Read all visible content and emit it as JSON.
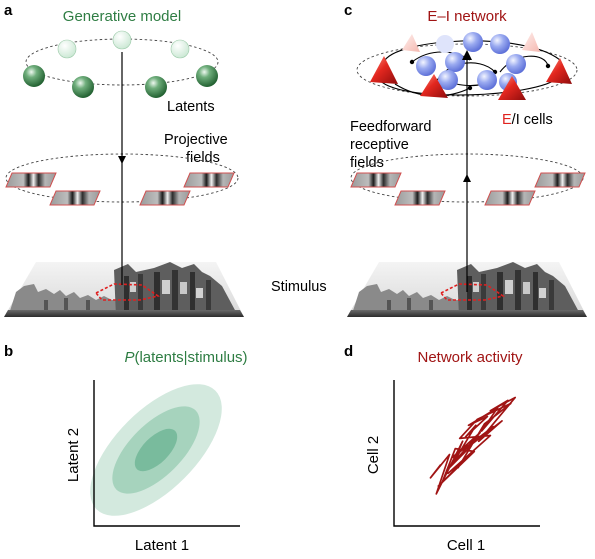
{
  "panels": {
    "a": {
      "letter": "a",
      "title": "Generative model",
      "latents_label": "Latents",
      "projective_label_1": "Projective",
      "projective_label_2": "fields",
      "stimulus_label": "Stimulus"
    },
    "b": {
      "letter": "b",
      "title_italic": "P",
      "title_rest": "(latents|stimulus)",
      "xlabel": "Latent 1",
      "ylabel": "Latent 2"
    },
    "c": {
      "letter": "c",
      "title": "E–I network",
      "ff_label_1": "Feedforward",
      "ff_label_2": "receptive",
      "ff_label_3": "fields",
      "ei_e": "E",
      "ei_rest": "/I cells"
    },
    "d": {
      "letter": "d",
      "title": "Network activity",
      "xlabel": "Cell 1",
      "ylabel": "Cell 2"
    }
  },
  "colors": {
    "green_title": "#2e7d43",
    "latent_green": "#2f7a3e",
    "latent_faded": "#d6eee0",
    "red": "#a01414",
    "excitatory": "#e0231f",
    "inhibitory": "#7c8fe6",
    "posterior_outer": "#d3e9de",
    "posterior_mid": "#a6d3bd",
    "posterior_inner": "#79bb9d"
  },
  "trajectory_cell1_cell2": [
    [
      0.32,
      0.42
    ],
    [
      0.25,
      0.33
    ],
    [
      0.38,
      0.49
    ],
    [
      0.29,
      0.22
    ],
    [
      0.47,
      0.58
    ],
    [
      0.41,
      0.44
    ],
    [
      0.56,
      0.69
    ],
    [
      0.49,
      0.61
    ],
    [
      0.64,
      0.75
    ],
    [
      0.51,
      0.69
    ],
    [
      0.71,
      0.81
    ],
    [
      0.6,
      0.65
    ],
    [
      0.78,
      0.86
    ],
    [
      0.66,
      0.79
    ],
    [
      0.83,
      0.88
    ],
    [
      0.58,
      0.58
    ],
    [
      0.74,
      0.72
    ],
    [
      0.48,
      0.52
    ],
    [
      0.68,
      0.68
    ],
    [
      0.4,
      0.47
    ],
    [
      0.59,
      0.64
    ],
    [
      0.36,
      0.38
    ],
    [
      0.53,
      0.55
    ],
    [
      0.44,
      0.4
    ],
    [
      0.62,
      0.7
    ],
    [
      0.7,
      0.76
    ],
    [
      0.8,
      0.84
    ],
    [
      0.57,
      0.73
    ],
    [
      0.45,
      0.6
    ],
    [
      0.66,
      0.62
    ],
    [
      0.37,
      0.36
    ],
    [
      0.5,
      0.47
    ],
    [
      0.33,
      0.3
    ],
    [
      0.42,
      0.53
    ],
    [
      0.55,
      0.51
    ],
    [
      0.3,
      0.27
    ]
  ]
}
